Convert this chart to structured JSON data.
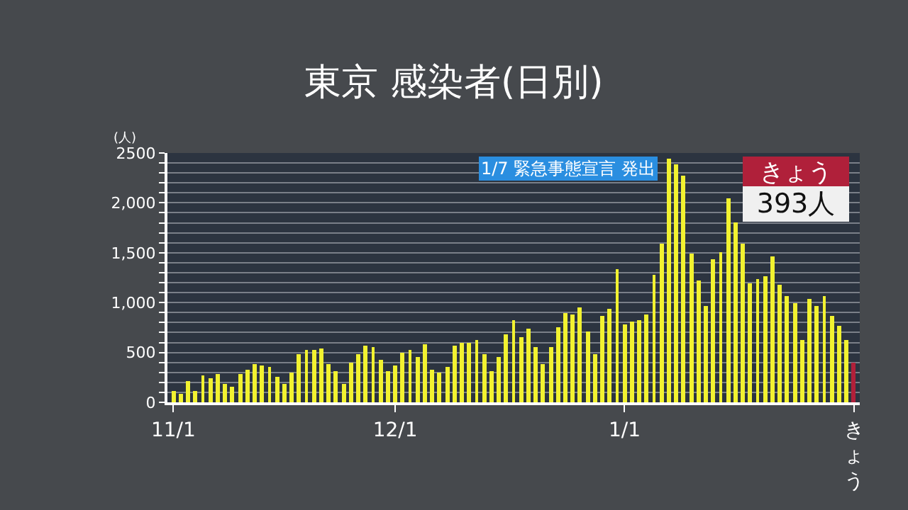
{
  "chart_data": {
    "type": "bar",
    "title": "東京 感染者(日別)",
    "ylabel": "(人)",
    "categories": [
      "11/1",
      null,
      null,
      null,
      null,
      null,
      null,
      null,
      null,
      null,
      null,
      null,
      null,
      null,
      null,
      null,
      null,
      null,
      null,
      null,
      null,
      null,
      null,
      null,
      null,
      null,
      null,
      null,
      null,
      null,
      "12/1",
      null,
      null,
      null,
      null,
      null,
      null,
      null,
      null,
      null,
      null,
      null,
      null,
      null,
      null,
      null,
      null,
      null,
      null,
      null,
      null,
      null,
      null,
      null,
      null,
      null,
      null,
      null,
      null,
      null,
      null,
      "1/1",
      null,
      null,
      null,
      null,
      null,
      null,
      null,
      null,
      null,
      null,
      null,
      null,
      null,
      null,
      null,
      null,
      null,
      null,
      null,
      null,
      null,
      null,
      null,
      null,
      null,
      null,
      null,
      null,
      null,
      null,
      "きょう"
    ],
    "values": [
      120,
      90,
      210,
      120,
      270,
      240,
      290,
      190,
      160,
      290,
      320,
      390,
      370,
      350,
      260,
      180,
      300,
      490,
      530,
      520,
      540,
      390,
      310,
      190,
      400,
      480,
      570,
      560,
      420,
      310,
      370,
      500,
      530,
      450,
      580,
      330,
      300,
      350,
      570,
      600,
      600,
      620,
      480,
      310,
      460,
      680,
      820,
      660,
      740,
      560,
      390,
      560,
      750,
      890,
      880,
      950,
      710,
      480,
      860,
      940,
      1340,
      780,
      810,
      820,
      880,
      1280,
      1590,
      2450,
      2390,
      2270,
      1490,
      1220,
      970,
      1430,
      1500,
      2040,
      1810,
      1590,
      1200,
      1240,
      1270,
      1470,
      1180,
      1070,
      990,
      620,
      1030,
      970,
      1060,
      870,
      770,
      630,
      393
    ],
    "colors": [
      "#f2f230",
      "#f2f230",
      "#f2f230",
      "#f2f230",
      "#f2f230",
      "#f2f230",
      "#f2f230",
      "#f2f230",
      "#f2f230",
      "#f2f230",
      "#f2f230",
      "#f2f230",
      "#f2f230",
      "#f2f230",
      "#f2f230",
      "#f2f230",
      "#f2f230",
      "#f2f230",
      "#f2f230",
      "#f2f230",
      "#f2f230",
      "#f2f230",
      "#f2f230",
      "#f2f230",
      "#f2f230",
      "#f2f230",
      "#f2f230",
      "#f2f230",
      "#f2f230",
      "#f2f230",
      "#f2f230",
      "#f2f230",
      "#f2f230",
      "#f2f230",
      "#f2f230",
      "#f2f230",
      "#f2f230",
      "#f2f230",
      "#f2f230",
      "#f2f230",
      "#f2f230",
      "#f2f230",
      "#f2f230",
      "#f2f230",
      "#f2f230",
      "#f2f230",
      "#f2f230",
      "#f2f230",
      "#f2f230",
      "#f2f230",
      "#f2f230",
      "#f2f230",
      "#f2f230",
      "#f2f230",
      "#f2f230",
      "#f2f230",
      "#f2f230",
      "#f2f230",
      "#f2f230",
      "#f2f230",
      "#f2f230",
      "#f2f230",
      "#f2f230",
      "#f2f230",
      "#f2f230",
      "#f2f230",
      "#f2f230",
      "#f2f230",
      "#f2f230",
      "#f2f230",
      "#f2f230",
      "#f2f230",
      "#f2f230",
      "#f2f230",
      "#f2f230",
      "#f2f230",
      "#f2f230",
      "#f2f230",
      "#f2f230",
      "#f2f230",
      "#f2f230",
      "#f2f230",
      "#f2f230",
      "#f2f230",
      "#f2f230",
      "#f2f230",
      "#f2f230",
      "#f2f230",
      "#f2f230",
      "#f2f230",
      "#f2f230",
      "#f2f230",
      "#b0203a"
    ],
    "ylim": [
      0,
      2500
    ],
    "yticks": [
      0,
      {
        "value": 100,
        "label": null
      },
      {
        "value": 200,
        "label": null
      },
      {
        "value": 300,
        "label": null
      },
      {
        "value": 400,
        "label": null
      },
      500,
      {
        "value": 600,
        "label": null
      },
      {
        "value": 700,
        "label": null
      },
      {
        "value": 800,
        "label": null
      },
      {
        "value": 900,
        "label": null
      },
      {
        "value": 1000,
        "label": "1,000"
      },
      {
        "value": 1100,
        "label": null
      },
      {
        "value": 1200,
        "label": null
      },
      {
        "value": 1300,
        "label": null
      },
      {
        "value": 1400,
        "label": null
      },
      {
        "value": 1500,
        "label": "1,500"
      },
      {
        "value": 1600,
        "label": null
      },
      {
        "value": 1700,
        "label": null
      },
      {
        "value": 1800,
        "label": null
      },
      {
        "value": 1900,
        "label": null
      },
      {
        "value": 2000,
        "label": "2,000"
      },
      {
        "value": 2100,
        "label": null
      },
      {
        "value": 2200,
        "label": null
      },
      {
        "value": 2300,
        "label": null
      },
      {
        "value": 2400,
        "label": null
      },
      2500
    ],
    "grid": "y",
    "annotations": [
      "1/7 緊急事態宣言 発出",
      "きょう",
      "393人"
    ]
  }
}
